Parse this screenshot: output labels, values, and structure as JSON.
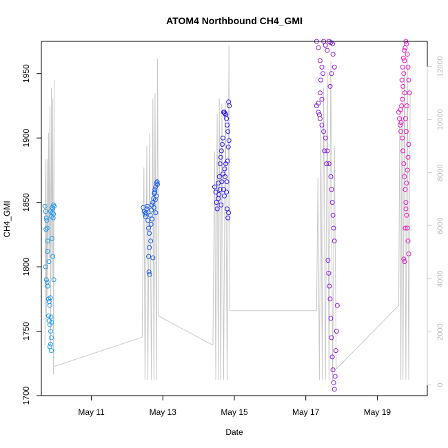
{
  "chart_data": {
    "type": "scatter",
    "title": "ATOM4 Northbound CH4_GMI",
    "xlabel": "Date",
    "ylabel": "CH4_GMI",
    "y2label": "",
    "x_ticks": [
      "May 11",
      "May 13",
      "May 15",
      "May 17",
      "May 19"
    ],
    "y_ticks": [
      "1700",
      "1750",
      "1800",
      "1850",
      "1900",
      "1950"
    ],
    "y2_ticks": [
      "0",
      "2000",
      "4000",
      "6000",
      "8000",
      "10000",
      "12000"
    ],
    "xlim_days": [
      9.6,
      20.4
    ],
    "ylim": [
      1700,
      1975
    ],
    "y2lim": [
      -400,
      12950
    ],
    "grid": false,
    "legend": "none",
    "altitude_line_color": "#c8c8c8",
    "series": [
      {
        "color": "#1e9bf0",
        "points": [
          [
            9.7,
            1847
          ],
          [
            9.72,
            1843
          ],
          [
            9.74,
            1838
          ],
          [
            9.76,
            1830
          ],
          [
            9.78,
            1820
          ],
          [
            9.72,
            1800
          ],
          [
            9.74,
            1790
          ],
          [
            9.76,
            1788
          ],
          [
            9.78,
            1785
          ],
          [
            9.8,
            1775
          ],
          [
            9.82,
            1773
          ],
          [
            9.84,
            1770
          ],
          [
            9.8,
            1762
          ],
          [
            9.82,
            1758
          ],
          [
            9.84,
            1755
          ],
          [
            9.86,
            1750
          ],
          [
            9.88,
            1745
          ],
          [
            9.86,
            1740
          ],
          [
            9.84,
            1738
          ],
          [
            9.88,
            1735
          ],
          [
            9.9,
            1822
          ],
          [
            9.92,
            1808
          ],
          [
            9.86,
            1843
          ],
          [
            9.88,
            1839
          ],
          [
            9.9,
            1846
          ],
          [
            9.92,
            1845
          ],
          [
            9.94,
            1841
          ],
          [
            9.95,
            1790
          ],
          [
            9.96,
            1847
          ],
          [
            9.93,
            1838
          ],
          [
            9.89,
            1757
          ],
          [
            9.75,
            1836
          ],
          [
            9.73,
            1829
          ],
          [
            9.77,
            1812
          ],
          [
            9.81,
            1804
          ],
          [
            9.85,
            1776
          ],
          [
            9.87,
            1761
          ],
          [
            9.91,
            1842
          ],
          [
            9.94,
            1848
          ]
        ],
        "altitude": [
          [
            9.7,
            1500
          ],
          [
            9.72,
            8500
          ],
          [
            9.74,
            2400
          ],
          [
            9.76,
            8500
          ],
          [
            9.78,
            3000
          ],
          [
            9.8,
            9500
          ],
          [
            9.82,
            4800
          ],
          [
            9.84,
            10500
          ],
          [
            9.86,
            1500
          ],
          [
            9.88,
            11200
          ],
          [
            9.9,
            4000
          ],
          [
            9.92,
            10800
          ],
          [
            9.94,
            400
          ],
          [
            9.96,
            11500
          ]
        ]
      },
      {
        "color": "#1a5ae6",
        "points": [
          [
            12.45,
            1846
          ],
          [
            12.48,
            1843
          ],
          [
            12.5,
            1841
          ],
          [
            12.52,
            1839
          ],
          [
            12.55,
            1845
          ],
          [
            12.58,
            1836
          ],
          [
            12.6,
            1830
          ],
          [
            12.62,
            1826
          ],
          [
            12.6,
            1808
          ],
          [
            12.61,
            1796
          ],
          [
            12.63,
            1794
          ],
          [
            12.65,
            1840
          ],
          [
            12.68,
            1844
          ],
          [
            12.7,
            1848
          ],
          [
            12.72,
            1850
          ],
          [
            12.74,
            1853
          ],
          [
            12.76,
            1857
          ],
          [
            12.78,
            1860
          ],
          [
            12.8,
            1862
          ],
          [
            12.82,
            1865
          ],
          [
            12.84,
            1866
          ],
          [
            12.8,
            1842
          ],
          [
            12.7,
            1837
          ],
          [
            12.66,
            1820
          ],
          [
            12.56,
            1847
          ],
          [
            12.62,
            1815
          ],
          [
            12.75,
            1846
          ],
          [
            12.82,
            1855
          ],
          [
            12.85,
            1864
          ],
          [
            12.53,
            1842
          ],
          [
            12.67,
            1833
          ],
          [
            12.72,
            1807
          ],
          [
            12.77,
            1858
          ],
          [
            12.79,
            1852
          ]
        ],
        "altitude": [
          [
            12.42,
            1800
          ],
          [
            12.47,
            8200
          ],
          [
            12.5,
            200
          ],
          [
            12.55,
            9000
          ],
          [
            12.58,
            200
          ],
          [
            12.63,
            9500
          ],
          [
            12.68,
            200
          ],
          [
            12.72,
            10800
          ],
          [
            12.75,
            200
          ],
          [
            12.78,
            11000
          ],
          [
            12.82,
            200
          ],
          [
            12.85,
            12300
          ],
          [
            12.88,
            2600
          ]
        ]
      },
      {
        "color": "#2a18e8",
        "points": [
          [
            14.45,
            1862
          ],
          [
            14.48,
            1858
          ],
          [
            14.5,
            1850
          ],
          [
            14.52,
            1845
          ],
          [
            14.55,
            1865
          ],
          [
            14.58,
            1870
          ],
          [
            14.6,
            1880
          ],
          [
            14.62,
            1885
          ],
          [
            14.64,
            1890
          ],
          [
            14.66,
            1895
          ],
          [
            14.68,
            1900
          ],
          [
            14.7,
            1920
          ],
          [
            14.72,
            1920
          ],
          [
            14.74,
            1919
          ],
          [
            14.76,
            1918
          ],
          [
            14.78,
            1915
          ],
          [
            14.8,
            1910
          ],
          [
            14.82,
            1905
          ],
          [
            14.84,
            1928
          ],
          [
            14.86,
            1925
          ],
          [
            14.7,
            1860
          ],
          [
            14.72,
            1855
          ],
          [
            14.74,
            1870
          ],
          [
            14.76,
            1880
          ],
          [
            14.78,
            1858
          ],
          [
            14.8,
            1845
          ],
          [
            14.82,
            1838
          ],
          [
            14.84,
            1842
          ],
          [
            14.55,
            1853
          ],
          [
            14.6,
            1860
          ],
          [
            14.65,
            1866
          ],
          [
            14.68,
            1872
          ],
          [
            14.73,
            1876
          ],
          [
            14.79,
            1866
          ],
          [
            14.81,
            1882
          ],
          [
            14.83,
            1893
          ],
          [
            14.85,
            1898
          ],
          [
            14.63,
            1848
          ],
          [
            14.57,
            1856
          ]
        ],
        "altitude": [
          [
            14.4,
            1500
          ],
          [
            14.45,
            8800
          ],
          [
            14.48,
            200
          ],
          [
            14.52,
            10200
          ],
          [
            14.55,
            200
          ],
          [
            14.58,
            10800
          ],
          [
            14.62,
            200
          ],
          [
            14.65,
            10600
          ],
          [
            14.7,
            200
          ],
          [
            14.75,
            10700
          ],
          [
            14.8,
            200
          ],
          [
            14.85,
            12800
          ],
          [
            14.87,
            2800
          ]
        ]
      },
      {
        "color": "#8a1ae0",
        "points": [
          [
            17.3,
            1975
          ],
          [
            17.35,
            1970
          ],
          [
            17.4,
            1960
          ],
          [
            17.45,
            1955
          ],
          [
            17.5,
            1975
          ],
          [
            17.55,
            1972
          ],
          [
            17.6,
            1968
          ],
          [
            17.65,
            1975
          ],
          [
            17.7,
            1974
          ],
          [
            17.75,
            1973
          ],
          [
            17.3,
            1925
          ],
          [
            17.35,
            1920
          ],
          [
            17.4,
            1915
          ],
          [
            17.45,
            1910
          ],
          [
            17.5,
            1905
          ],
          [
            17.55,
            1900
          ],
          [
            17.6,
            1890
          ],
          [
            17.65,
            1880
          ],
          [
            17.7,
            1870
          ],
          [
            17.72,
            1860
          ],
          [
            17.74,
            1850
          ],
          [
            17.76,
            1840
          ],
          [
            17.78,
            1830
          ],
          [
            17.8,
            1820
          ],
          [
            17.62,
            1805
          ],
          [
            17.64,
            1795
          ],
          [
            17.66,
            1785
          ],
          [
            17.68,
            1775
          ],
          [
            17.7,
            1760
          ],
          [
            17.72,
            1745
          ],
          [
            17.74,
            1730
          ],
          [
            17.76,
            1720
          ],
          [
            17.78,
            1710
          ],
          [
            17.8,
            1705
          ],
          [
            17.82,
            1715
          ],
          [
            17.84,
            1735
          ],
          [
            17.86,
            1750
          ],
          [
            17.88,
            1770
          ],
          [
            17.4,
            1935
          ],
          [
            17.45,
            1930
          ],
          [
            17.35,
            1927
          ],
          [
            17.38,
            1918
          ],
          [
            17.42,
            1945
          ],
          [
            17.48,
            1950
          ],
          [
            17.52,
            1890
          ],
          [
            17.58,
            1880
          ],
          [
            17.68,
            1940
          ],
          [
            17.72,
            1950
          ],
          [
            17.76,
            1965
          ],
          [
            17.8,
            1955
          ]
        ],
        "altitude": [
          [
            17.3,
            2800
          ],
          [
            17.34,
            7800
          ],
          [
            17.38,
            200
          ],
          [
            17.42,
            9800
          ],
          [
            17.46,
            200
          ],
          [
            17.5,
            11200
          ],
          [
            17.55,
            200
          ],
          [
            17.6,
            11800
          ],
          [
            17.65,
            200
          ],
          [
            17.7,
            12200
          ],
          [
            17.75,
            200
          ],
          [
            17.8,
            9000
          ],
          [
            17.85,
            600
          ]
        ]
      },
      {
        "color": "#e61ac0",
        "points": [
          [
            19.6,
            1920
          ],
          [
            19.62,
            1915
          ],
          [
            19.64,
            1910
          ],
          [
            19.66,
            1905
          ],
          [
            19.68,
            1925
          ],
          [
            19.7,
            1930
          ],
          [
            19.72,
            1940
          ],
          [
            19.74,
            1950
          ],
          [
            19.76,
            1960
          ],
          [
            19.78,
            1970
          ],
          [
            19.8,
            1975
          ],
          [
            19.82,
            1973
          ],
          [
            19.84,
            1965
          ],
          [
            19.86,
            1955
          ],
          [
            19.88,
            1945
          ],
          [
            19.9,
            1935
          ],
          [
            19.7,
            1900
          ],
          [
            19.72,
            1890
          ],
          [
            19.74,
            1880
          ],
          [
            19.76,
            1870
          ],
          [
            19.78,
            1860
          ],
          [
            19.8,
            1850
          ],
          [
            19.82,
            1840
          ],
          [
            19.84,
            1830
          ],
          [
            19.86,
            1820
          ],
          [
            19.88,
            1810
          ],
          [
            19.74,
            1806
          ],
          [
            19.76,
            1804
          ],
          [
            19.78,
            1830
          ],
          [
            19.8,
            1845
          ],
          [
            19.82,
            1865
          ],
          [
            19.84,
            1875
          ],
          [
            19.86,
            1885
          ],
          [
            19.88,
            1895
          ],
          [
            19.65,
            1922
          ],
          [
            19.67,
            1912
          ],
          [
            19.69,
            1945
          ],
          [
            19.71,
            1955
          ],
          [
            19.73,
            1962
          ],
          [
            19.75,
            1968
          ],
          [
            19.77,
            1935
          ],
          [
            19.79,
            1915
          ],
          [
            19.81,
            1905
          ],
          [
            19.83,
            1925
          ]
        ],
        "altitude": [
          [
            19.6,
            3000
          ],
          [
            19.63,
            10300
          ],
          [
            19.66,
            200
          ],
          [
            19.69,
            11200
          ],
          [
            19.72,
            200
          ],
          [
            19.76,
            12000
          ],
          [
            19.8,
            200
          ],
          [
            19.84,
            12500
          ],
          [
            19.88,
            200
          ],
          [
            19.92,
            11000
          ]
        ]
      }
    ],
    "altitude_connectors": [
      [
        9.96,
        700
      ],
      [
        12.42,
        1800
      ],
      [
        12.88,
        2600
      ],
      [
        14.4,
        1500
      ],
      [
        14.87,
        2800
      ],
      [
        17.3,
        2800
      ],
      [
        17.85,
        600
      ],
      [
        19.6,
        3000
      ]
    ]
  }
}
